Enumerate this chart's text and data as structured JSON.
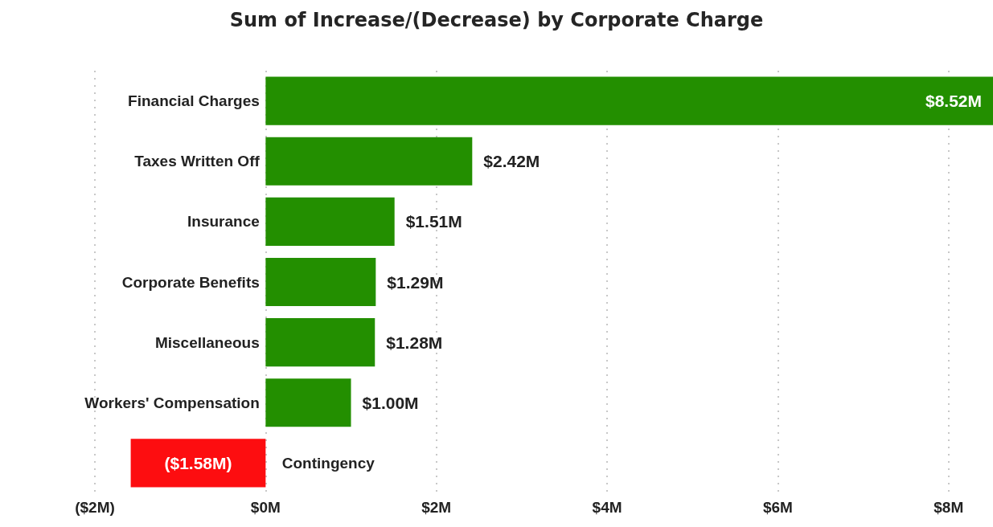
{
  "chart_data": {
    "type": "bar",
    "orientation": "horizontal",
    "title": "Sum of Increase/(Decrease) by Corporate Charge",
    "categories": [
      "Financial Charges",
      "Taxes Written Off",
      "Insurance",
      "Corporate Benefits",
      "Miscellaneous",
      "Workers' Compensation",
      "Contingency"
    ],
    "values": [
      8.52,
      2.42,
      1.51,
      1.29,
      1.28,
      1.0,
      -1.58
    ],
    "colors": [
      "#238f00",
      "#238f00",
      "#238f00",
      "#238f00",
      "#238f00",
      "#238f00",
      "#fd0d10"
    ],
    "value_labels": [
      "$8.52M",
      "$2.42M",
      "$1.51M",
      "$1.29M",
      "$1.28M",
      "$1.00M",
      "($1.58M)"
    ],
    "xlim": [
      -2,
      8.52
    ],
    "xticks": [
      {
        "value": -2,
        "label": "($2M)"
      },
      {
        "value": 0,
        "label": "$0M"
      },
      {
        "value": 2,
        "label": "$2M"
      },
      {
        "value": 4,
        "label": "$4M"
      },
      {
        "value": 6,
        "label": "$6M"
      },
      {
        "value": 8,
        "label": "$8M"
      }
    ],
    "grid": "x"
  }
}
